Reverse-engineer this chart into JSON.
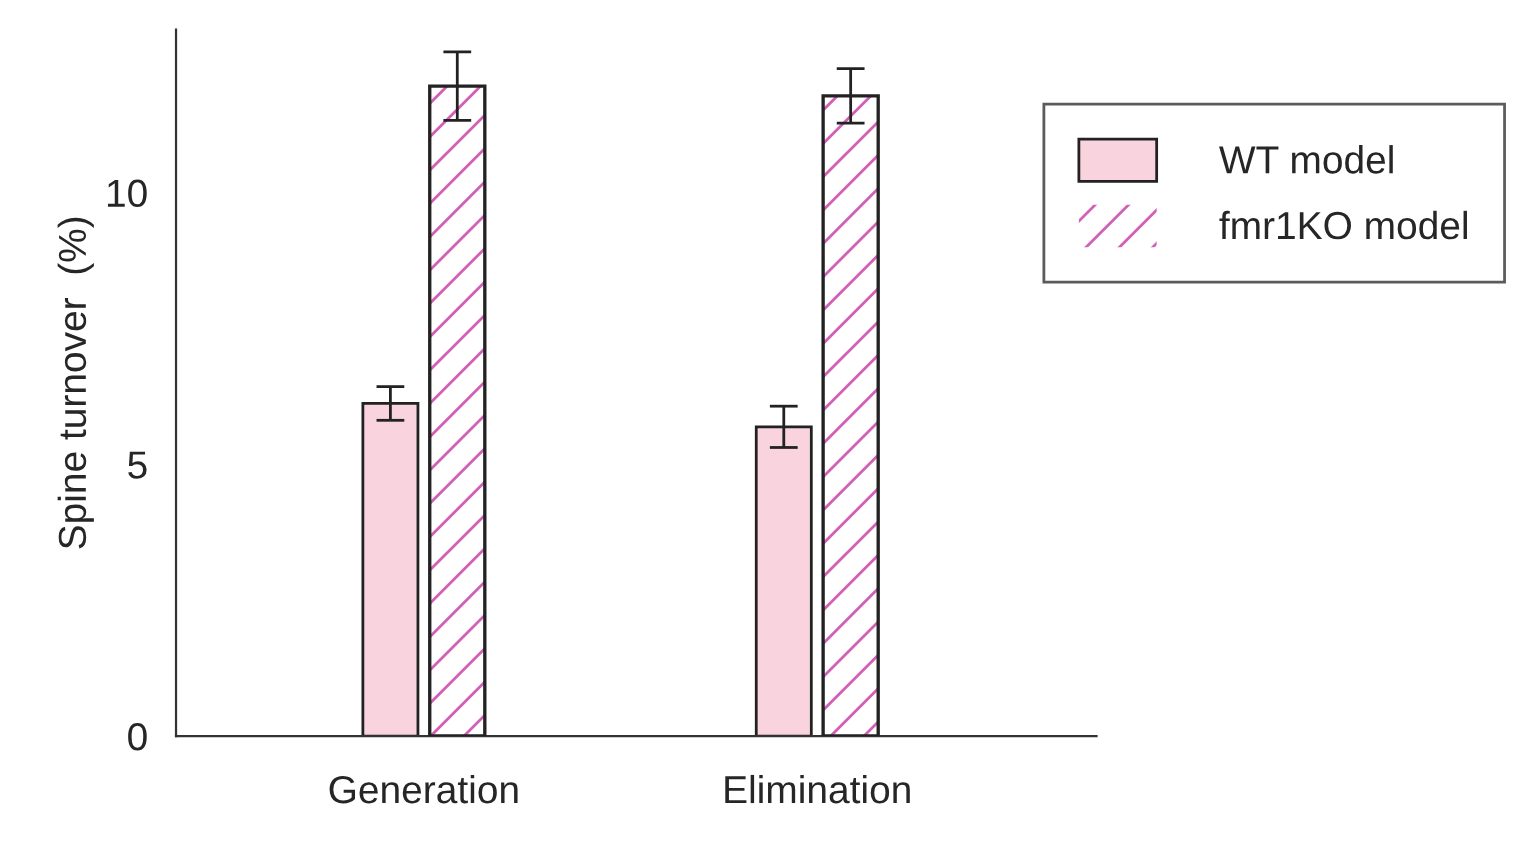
{
  "chart_data": {
    "type": "bar",
    "ylabel": "Spine turnover  (%)",
    "categories": [
      "Generation",
      "Elimination"
    ],
    "series": [
      {
        "name": "WT model",
        "color": "#f9d3de",
        "values": [
          6.12,
          5.69
        ],
        "errors": [
          0.31,
          0.38
        ]
      },
      {
        "name": "fmr1KO model",
        "color": "#d35fb7",
        "values": [
          11.96,
          11.78
        ],
        "errors": [
          0.63,
          0.5
        ]
      }
    ],
    "ylim": [
      0,
      13
    ],
    "yticks": [
      0,
      5,
      10
    ],
    "grid": false,
    "legend": "top right"
  }
}
